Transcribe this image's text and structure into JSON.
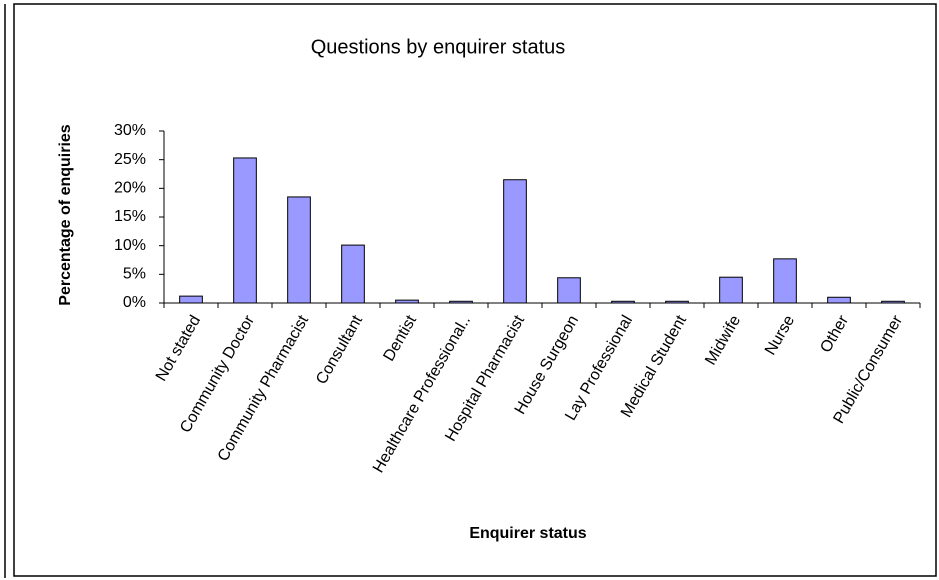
{
  "chart_data": {
    "type": "bar",
    "title": "Questions by enquirer status",
    "x_label": "Enquirer status",
    "y_label": "Percentage of enquiries",
    "categories": [
      "Not stated",
      "Community Doctor",
      "Community Pharmacist",
      "Consultant",
      "Dentist",
      "Healthcare Professional..",
      "Hospital Pharmacist",
      "House Surgeon",
      "Lay Professional",
      "Medical Student",
      "Midwife",
      "Nurse",
      "Other",
      "Public/Consumer"
    ],
    "values": [
      1.2,
      25.3,
      18.5,
      10.1,
      0.5,
      0.3,
      21.5,
      4.4,
      0.3,
      0.3,
      4.5,
      7.7,
      1.0,
      0.3
    ],
    "color": "#9999ff",
    "ylim": [
      0,
      30
    ],
    "yticks": [
      {
        "value": 0,
        "label": "0%"
      },
      {
        "value": 5,
        "label": "5%"
      },
      {
        "value": 10,
        "label": "10%"
      },
      {
        "value": 15,
        "label": "15%"
      },
      {
        "value": 20,
        "label": "20%"
      },
      {
        "value": 25,
        "label": "25%"
      },
      {
        "value": 30,
        "label": "30%"
      }
    ],
    "grid": false
  }
}
